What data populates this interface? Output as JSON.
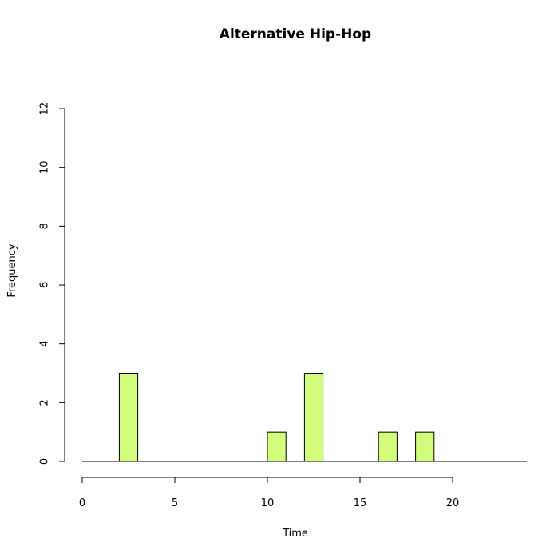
{
  "chart_data": {
    "type": "bar",
    "title": "Alternative Hip-Hop",
    "xlabel": "Time",
    "ylabel": "Frequency",
    "xlim": [
      0,
      24
    ],
    "ylim": [
      0,
      12
    ],
    "x_ticks": [
      0,
      5,
      10,
      15,
      20
    ],
    "y_ticks": [
      0,
      2,
      4,
      6,
      8,
      10,
      12
    ],
    "bin_width": 1,
    "bins": [
      {
        "start": 0,
        "end": 1,
        "count": 0
      },
      {
        "start": 1,
        "end": 2,
        "count": 0
      },
      {
        "start": 2,
        "end": 3,
        "count": 3
      },
      {
        "start": 3,
        "end": 4,
        "count": 0
      },
      {
        "start": 4,
        "end": 5,
        "count": 0
      },
      {
        "start": 5,
        "end": 6,
        "count": 0
      },
      {
        "start": 6,
        "end": 7,
        "count": 0
      },
      {
        "start": 7,
        "end": 8,
        "count": 0
      },
      {
        "start": 8,
        "end": 9,
        "count": 0
      },
      {
        "start": 9,
        "end": 10,
        "count": 0
      },
      {
        "start": 10,
        "end": 11,
        "count": 1
      },
      {
        "start": 11,
        "end": 12,
        "count": 0
      },
      {
        "start": 12,
        "end": 13,
        "count": 3
      },
      {
        "start": 13,
        "end": 14,
        "count": 0
      },
      {
        "start": 14,
        "end": 15,
        "count": 0
      },
      {
        "start": 15,
        "end": 16,
        "count": 0
      },
      {
        "start": 16,
        "end": 17,
        "count": 1
      },
      {
        "start": 17,
        "end": 18,
        "count": 0
      },
      {
        "start": 18,
        "end": 19,
        "count": 1
      },
      {
        "start": 19,
        "end": 20,
        "count": 0
      },
      {
        "start": 20,
        "end": 21,
        "count": 0
      },
      {
        "start": 21,
        "end": 22,
        "count": 0
      },
      {
        "start": 22,
        "end": 23,
        "count": 0
      },
      {
        "start": 23,
        "end": 24,
        "count": 0
      }
    ],
    "bar_color": "#d4fc7c",
    "edge_color": "#000000",
    "grid": false,
    "legend": "none"
  }
}
